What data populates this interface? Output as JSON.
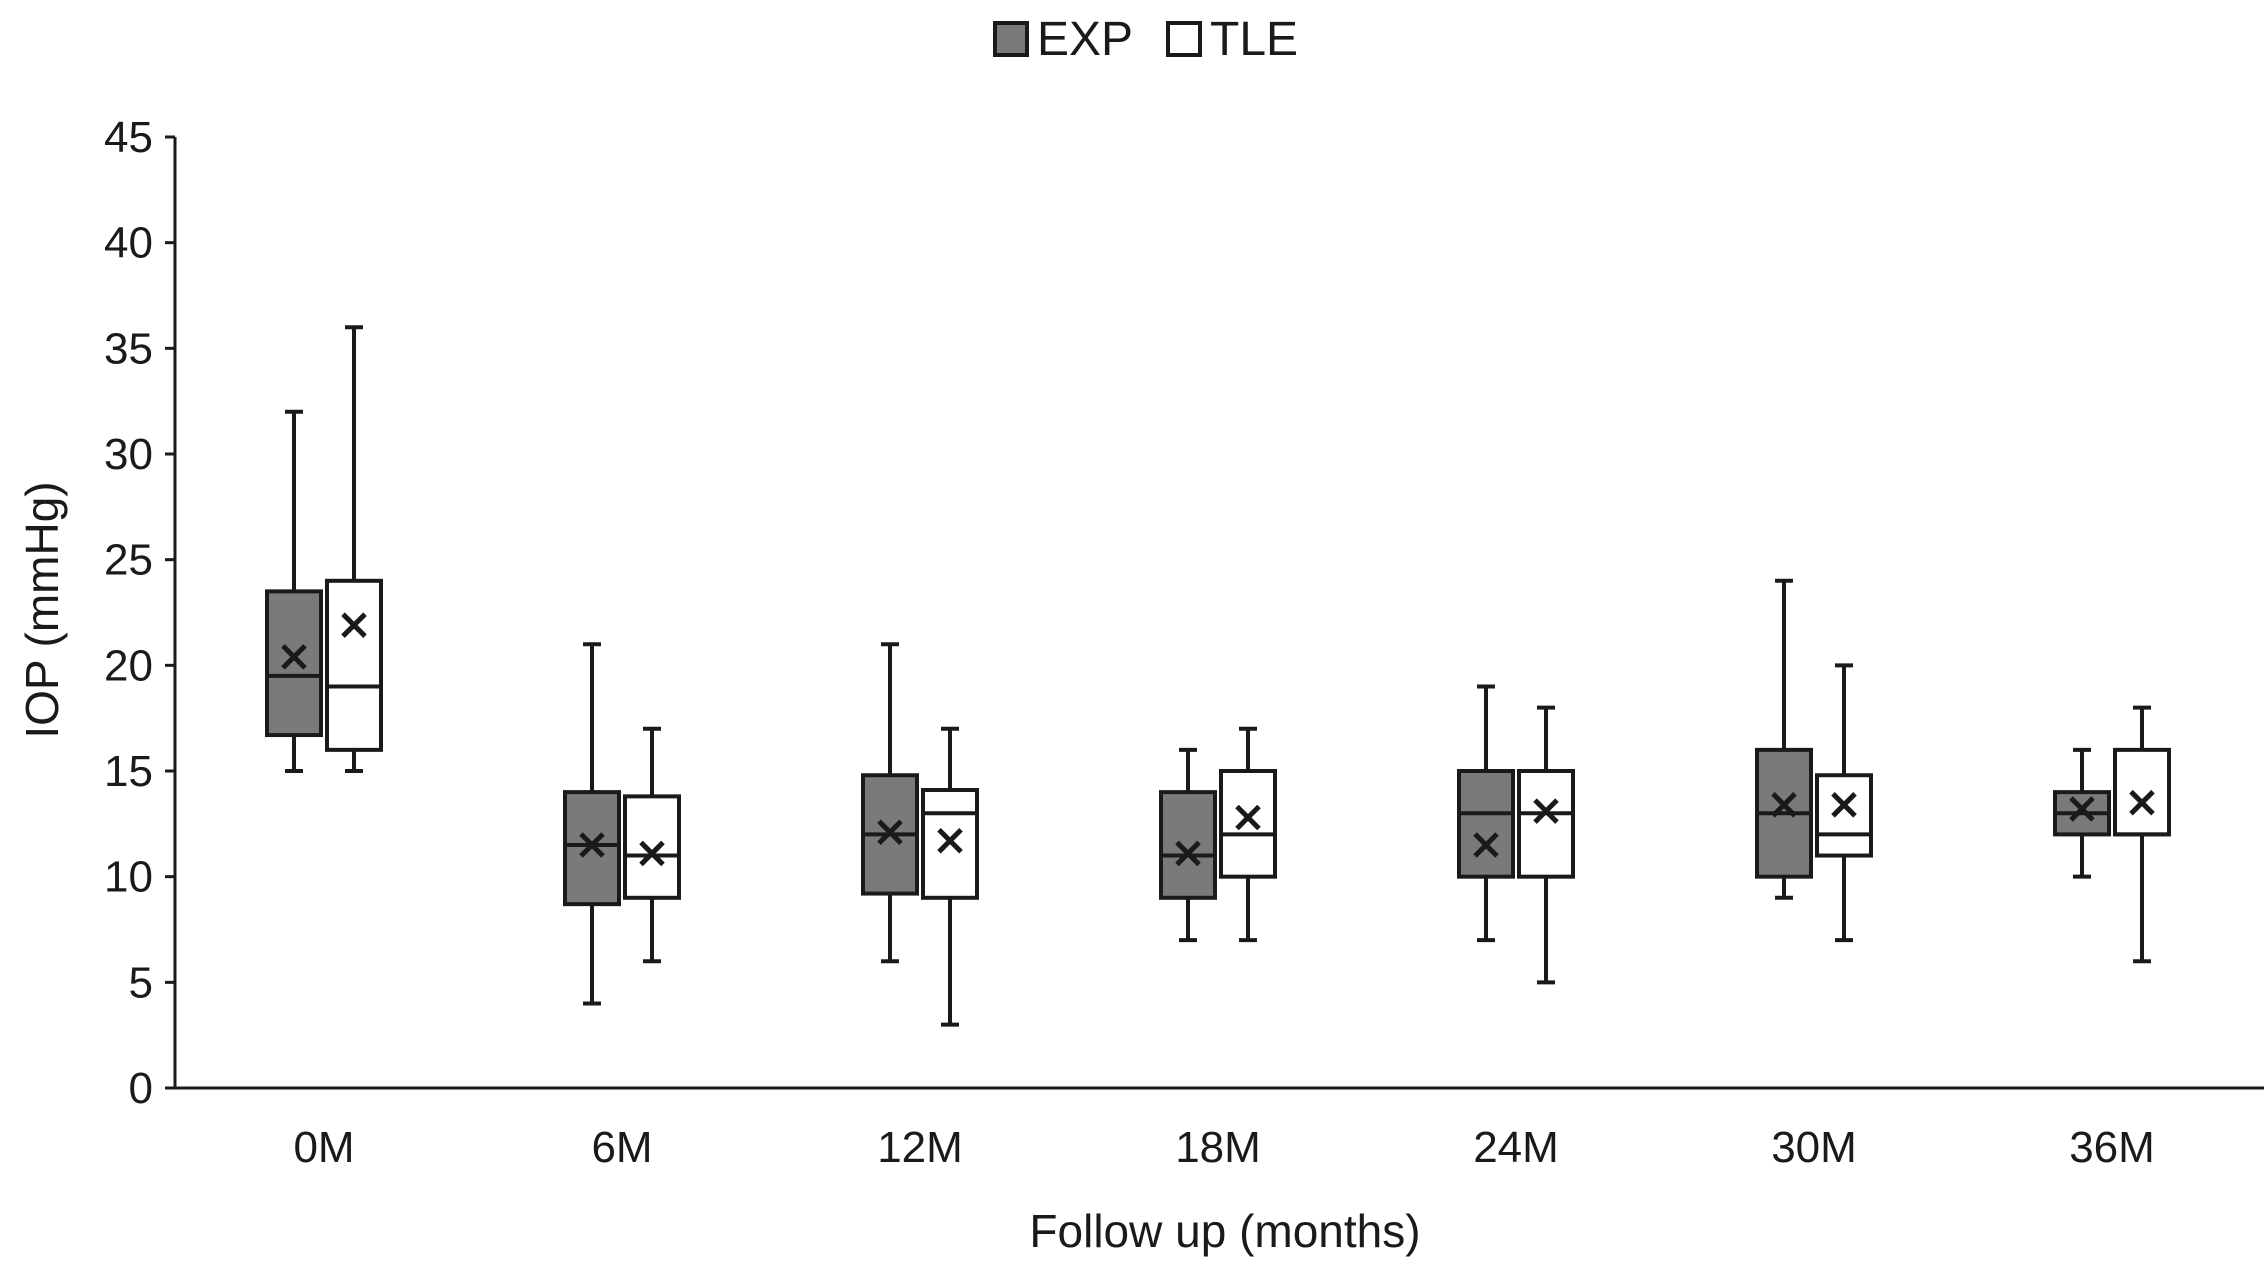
{
  "chart_data": {
    "type": "box",
    "xlabel": "Follow up (months)",
    "ylabel": "IOP (mmHg)",
    "ylim": [
      0,
      45
    ],
    "yticks": [
      0,
      5,
      10,
      15,
      20,
      25,
      30,
      35,
      40,
      45
    ],
    "categories": [
      "0M",
      "6M",
      "12M",
      "18M",
      "24M",
      "30M",
      "36M"
    ],
    "legend_position": "top-center",
    "grid": false,
    "series": [
      {
        "name": "EXP",
        "color": "#7a7a7a",
        "boxes": [
          {
            "min": 15,
            "q1": 16.7,
            "median": 19.5,
            "q3": 23.5,
            "max": 32,
            "mean": 20.4
          },
          {
            "min": 4,
            "q1": 8.7,
            "median": 11.5,
            "q3": 14,
            "max": 21,
            "mean": 11.5
          },
          {
            "min": 6,
            "q1": 9.2,
            "median": 12,
            "q3": 14.8,
            "max": 21,
            "mean": 12.1
          },
          {
            "min": 7,
            "q1": 9,
            "median": 11,
            "q3": 14,
            "max": 16,
            "mean": 11.1
          },
          {
            "min": 7,
            "q1": 10,
            "median": 13,
            "q3": 15,
            "max": 19,
            "mean": 11.5
          },
          {
            "min": 9,
            "q1": 10,
            "median": 13,
            "q3": 16,
            "max": 24,
            "mean": 13.4
          },
          {
            "min": 10,
            "q1": 12,
            "median": 13,
            "q3": 14,
            "max": 16,
            "mean": 13.2
          }
        ]
      },
      {
        "name": "TLE",
        "color": "#ffffff",
        "boxes": [
          {
            "min": 15,
            "q1": 16,
            "median": 19,
            "q3": 24,
            "max": 36,
            "mean": 21.9
          },
          {
            "min": 6,
            "q1": 9,
            "median": 11,
            "q3": 13.8,
            "max": 17,
            "mean": 11.1
          },
          {
            "min": 3,
            "q1": 9,
            "median": 13,
            "q3": 14.1,
            "max": 17,
            "mean": 11.7
          },
          {
            "min": 7,
            "q1": 10,
            "median": 12,
            "q3": 15,
            "max": 17,
            "mean": 12.8
          },
          {
            "min": 5,
            "q1": 10,
            "median": 13,
            "q3": 15,
            "max": 18,
            "mean": 13.1
          },
          {
            "min": 7,
            "q1": 11,
            "median": 12,
            "q3": 14.8,
            "max": 20,
            "mean": 13.4
          },
          {
            "min": 6,
            "q1": 12,
            "median": 12,
            "q3": 16,
            "max": 18,
            "mean": 13.5
          }
        ]
      }
    ]
  }
}
